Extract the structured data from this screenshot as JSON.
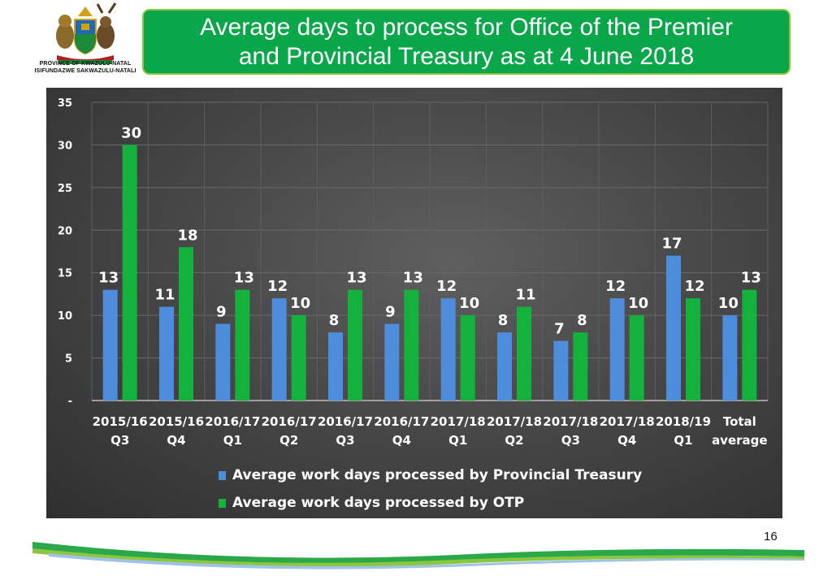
{
  "header": {
    "title_line1": "Average days to process for Office of the Premier",
    "title_line2": "and Provincial Treasury as at 4 June 2018",
    "logo_caption_line1": "PROVINCE OF KWAZULU-NATAL",
    "logo_caption_line2": "ISIFUNDAZWE SAKWAZULU-NATALI"
  },
  "colors": {
    "title_background": "#0aa64a",
    "treasury_bar": "#4e8ddb",
    "otp_bar": "#14b13c",
    "chart_background": "#474747"
  },
  "chart_data": {
    "type": "bar",
    "title": "",
    "xlabel": "",
    "ylabel": "",
    "ylim": [
      0,
      35
    ],
    "yticks": [
      "-",
      "5",
      "10",
      "15",
      "20",
      "25",
      "30",
      "35"
    ],
    "grid": true,
    "legend_position": "bottom",
    "categories": [
      [
        "2015/16",
        "Q3"
      ],
      [
        "2015/16",
        "Q4"
      ],
      [
        "2016/17",
        "Q1"
      ],
      [
        "2016/17",
        "Q2"
      ],
      [
        "2016/17",
        "Q3"
      ],
      [
        "2016/17",
        "Q4"
      ],
      [
        "2017/18",
        "Q1"
      ],
      [
        "2017/18",
        "Q2"
      ],
      [
        "2017/18",
        "Q3"
      ],
      [
        "2017/18",
        "Q4"
      ],
      [
        "2018/19",
        "Q1"
      ],
      [
        "Total",
        "average"
      ]
    ],
    "series": [
      {
        "name": "Average work days processed by Provincial Treasury",
        "color": "#4e8ddb",
        "values": [
          13,
          11,
          9,
          12,
          8,
          9,
          12,
          8,
          7,
          12,
          17,
          10
        ]
      },
      {
        "name": "Average work days processed by OTP",
        "color": "#14b13c",
        "values": [
          30,
          18,
          13,
          10,
          13,
          13,
          10,
          11,
          8,
          10,
          12,
          13
        ]
      }
    ]
  },
  "footer": {
    "page_number": "16"
  }
}
